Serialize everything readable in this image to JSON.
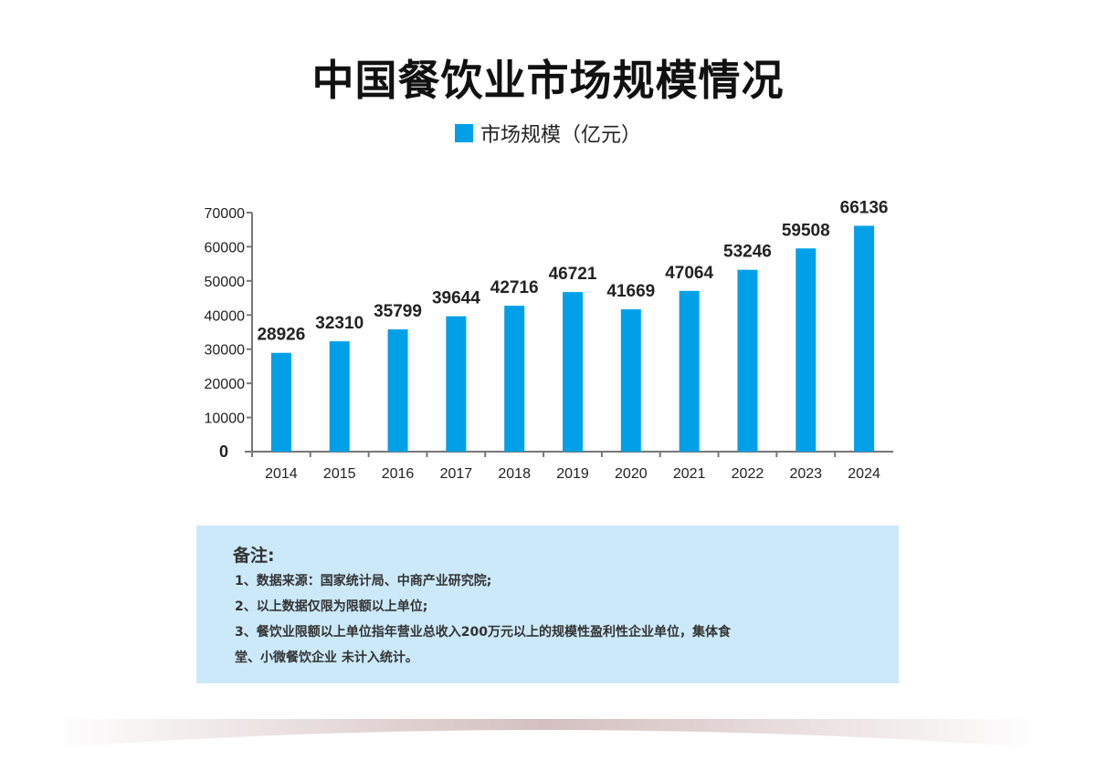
{
  "title": "中国餐饮业市场规模情况",
  "chart_data": {
    "type": "bar",
    "title": "中国餐饮业市场规模情况",
    "categories": [
      "2014",
      "2015",
      "2016",
      "2017",
      "2018",
      "2019",
      "2020",
      "2021",
      "2022",
      "2023",
      "2024"
    ],
    "series": [
      {
        "name": "市场规模（亿元）",
        "values": [
          28926,
          32310,
          35799,
          39644,
          42716,
          46721,
          41669,
          47064,
          53246,
          59508,
          66136
        ]
      }
    ],
    "ylim": [
      0,
      70000
    ],
    "yticks": [
      "0",
      "10000",
      "20000",
      "30000",
      "40000",
      "50000",
      "60000",
      "70000"
    ],
    "color": "#00a0e9",
    "legend": "top-center",
    "grid": false
  },
  "note": {
    "heading": "备注:",
    "lines": [
      "1、数据来源：国家统计局、中商产业研究院;",
      "2、以上数据仅限为限额以上单位;",
      "3、餐饮业限额以上单位指年营业总收入200万元以上的规模性盈利性企业单位，集体食",
      "堂、小微餐饮企业 未计入统计。"
    ]
  }
}
